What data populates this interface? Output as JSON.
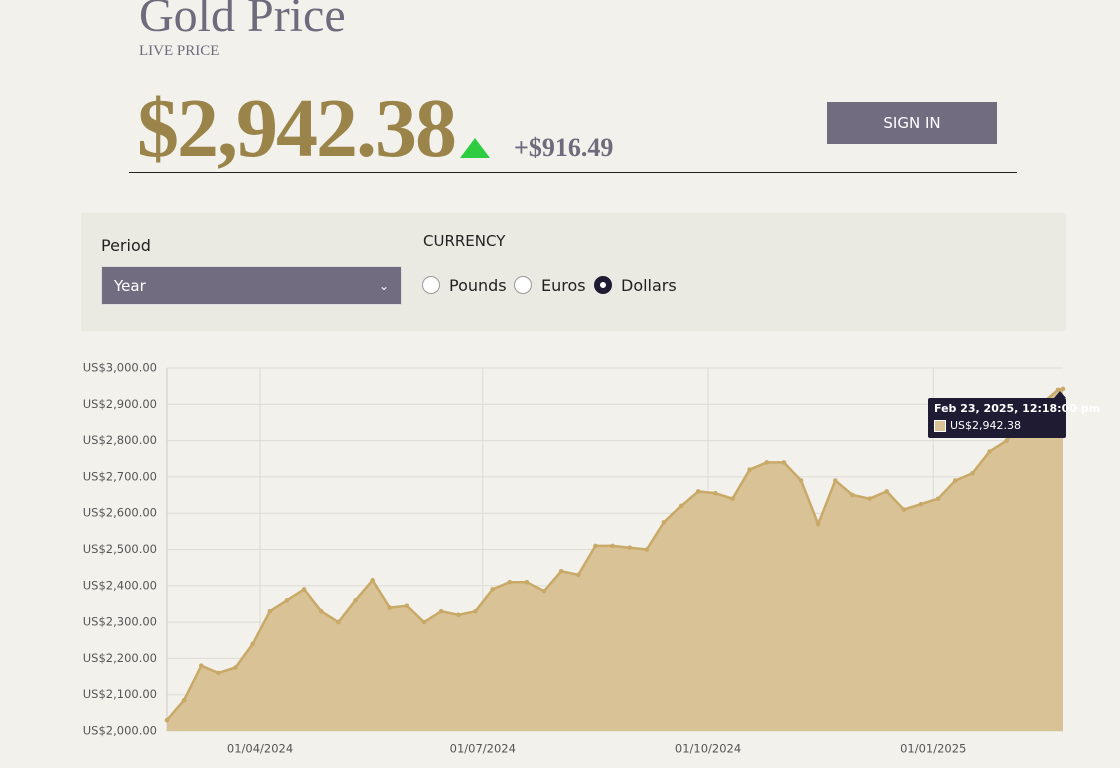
{
  "page": {
    "title": "Gold Price",
    "subtitle": "LIVE PRICE",
    "price": "$2,942.38",
    "change": "+$916.49",
    "sign_in": "SIGN IN",
    "period": {
      "label": "Period",
      "value": "Year"
    },
    "currency": {
      "label": "CURRENCY",
      "options": [
        {
          "label": "Pounds",
          "selected": false
        },
        {
          "label": "Euros",
          "selected": false
        },
        {
          "label": "Dollars",
          "selected": true
        }
      ]
    },
    "tooltip": {
      "date": "Feb 23, 2025, 12:18:00 pm",
      "value": "US$2,942.38"
    }
  },
  "chart_data": {
    "type": "area",
    "x": [
      "2024-02-23",
      "2024-03-01",
      "2024-03-08",
      "2024-03-15",
      "2024-03-22",
      "2024-03-29",
      "2024-04-05",
      "2024-04-12",
      "2024-04-19",
      "2024-04-26",
      "2024-05-03",
      "2024-05-10",
      "2024-05-17",
      "2024-05-24",
      "2024-05-31",
      "2024-06-07",
      "2024-06-14",
      "2024-06-21",
      "2024-06-28",
      "2024-07-05",
      "2024-07-12",
      "2024-07-19",
      "2024-07-26",
      "2024-08-02",
      "2024-08-09",
      "2024-08-16",
      "2024-08-23",
      "2024-08-30",
      "2024-09-06",
      "2024-09-13",
      "2024-09-20",
      "2024-09-27",
      "2024-10-04",
      "2024-10-11",
      "2024-10-18",
      "2024-10-25",
      "2024-11-01",
      "2024-11-08",
      "2024-11-15",
      "2024-11-22",
      "2024-11-29",
      "2024-12-06",
      "2024-12-13",
      "2024-12-20",
      "2024-12-27",
      "2025-01-03",
      "2025-01-10",
      "2025-01-17",
      "2025-01-24",
      "2025-01-31",
      "2025-02-07",
      "2025-02-14",
      "2025-02-21",
      "2025-02-23"
    ],
    "values": [
      2030,
      2085,
      2180,
      2160,
      2175,
      2240,
      2330,
      2360,
      2390,
      2330,
      2300,
      2360,
      2415,
      2340,
      2345,
      2300,
      2330,
      2320,
      2330,
      2390,
      2410,
      2410,
      2385,
      2440,
      2430,
      2510,
      2510,
      2505,
      2500,
      2575,
      2620,
      2660,
      2655,
      2640,
      2720,
      2740,
      2740,
      2690,
      2570,
      2690,
      2650,
      2640,
      2660,
      2610,
      2625,
      2640,
      2690,
      2710,
      2770,
      2800,
      2860,
      2900,
      2940,
      2942.38
    ],
    "color": "#c9a968",
    "fill": "#d9c296",
    "xlim": [
      "2024-02-23",
      "2025-02-23"
    ],
    "xticks": [
      {
        "value": "2024-04-01",
        "label": "01/04/2024"
      },
      {
        "value": "2024-07-01",
        "label": "01/07/2024"
      },
      {
        "value": "2024-10-01",
        "label": "01/10/2024"
      },
      {
        "value": "2025-01-01",
        "label": "01/01/2025"
      }
    ],
    "ylim": [
      2000,
      3000
    ],
    "yticks": [
      {
        "value": 2000,
        "label": "US$2,000.00"
      },
      {
        "value": 2100,
        "label": "US$2,100.00"
      },
      {
        "value": 2200,
        "label": "US$2,200.00"
      },
      {
        "value": 2300,
        "label": "US$2,300.00"
      },
      {
        "value": 2400,
        "label": "US$2,400.00"
      },
      {
        "value": 2500,
        "label": "US$2,500.00"
      },
      {
        "value": 2600,
        "label": "US$2,600.00"
      },
      {
        "value": 2700,
        "label": "US$2,700.00"
      },
      {
        "value": 2800,
        "label": "US$2,800.00"
      },
      {
        "value": 2900,
        "label": "US$2,900.00"
      },
      {
        "value": 3000,
        "label": "US$3,000.00"
      }
    ],
    "grid": true
  }
}
